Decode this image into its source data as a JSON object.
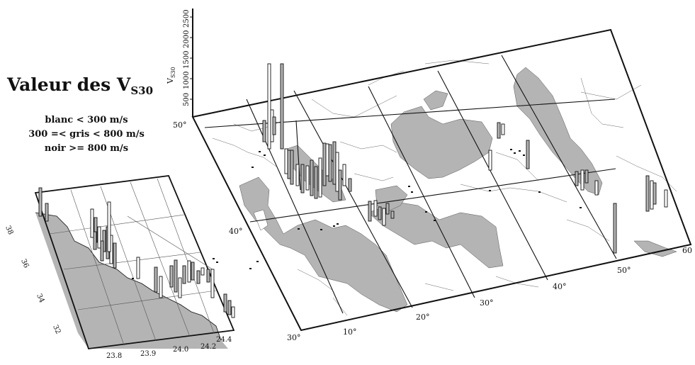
{
  "title": {
    "main": "Valeur des V",
    "subscript": "S30"
  },
  "legend": [
    "blanc < 300 m/s",
    "300 =< gris < 800 m/s",
    "noir >= 800 m/s"
  ],
  "colors": {
    "land": "#ffffff",
    "sea": "#b4b4b4",
    "ink": "#111111",
    "bar_white": "#ffffff",
    "bar_gray": "#b4b4b4",
    "bar_black": "#111111"
  },
  "vertical_axis": {
    "label": "V",
    "label_subscript": "S30",
    "ticks": [
      "500",
      "1000",
      "1500",
      "2000",
      "2500"
    ]
  },
  "main_map": {
    "lat_labels": [
      "30°",
      "40°",
      "50°"
    ],
    "lon_labels": [
      "10°",
      "20°",
      "30°",
      "40°",
      "50°",
      "60"
    ],
    "lon_range": [
      0,
      60
    ],
    "lat_range": [
      30,
      50
    ]
  },
  "inset_map": {
    "lat_labels": [
      "38",
      "36",
      "34",
      "32"
    ],
    "lon_labels": [
      "23.8",
      "23.9",
      "24.0",
      "24.2",
      "24.4"
    ]
  }
}
